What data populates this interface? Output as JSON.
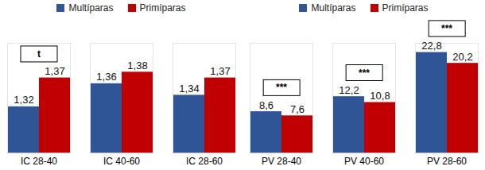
{
  "chart_data": [
    {
      "type": "bar",
      "categories": [
        "IC 28-40",
        "IC 40-60",
        "IC 28-60"
      ],
      "series": [
        {
          "name": "Multíparas",
          "color": "#2f5597",
          "values": [
            1.32,
            1.36,
            1.34
          ],
          "value_labels": [
            "1,32",
            "1,36",
            "1,34"
          ]
        },
        {
          "name": "Primíparas",
          "color": "#c00000",
          "values": [
            1.37,
            1.38,
            1.37
          ],
          "value_labels": [
            "1,37",
            "1,38",
            "1,37"
          ]
        }
      ],
      "ylim": [
        1.24,
        1.43
      ],
      "tick_labels": "x",
      "data_labels": true,
      "legend": "top",
      "annotations": [
        {
          "category": "IC 28-40",
          "text": "t"
        }
      ]
    },
    {
      "type": "bar",
      "categories": [
        "PV 28-40",
        "PV 40-60",
        "PV 28-60"
      ],
      "series": [
        {
          "name": "Multíparas",
          "color": "#2f5597",
          "values": [
            8.6,
            12.2,
            22.8
          ],
          "value_labels": [
            "8,6",
            "12,2",
            "22,8"
          ]
        },
        {
          "name": "Primíparas",
          "color": "#c00000",
          "values": [
            7.6,
            10.8,
            20.2
          ],
          "value_labels": [
            "7,6",
            "10,8",
            "20,2"
          ]
        }
      ],
      "ylim": [
        -1.3,
        25
      ],
      "tick_labels": "x",
      "data_labels": true,
      "legend": "top",
      "annotations": [
        {
          "category": "PV 28-40",
          "text": "***"
        },
        {
          "category": "PV 40-60",
          "text": "***"
        },
        {
          "category": "PV 28-60",
          "text": "***"
        }
      ]
    }
  ]
}
